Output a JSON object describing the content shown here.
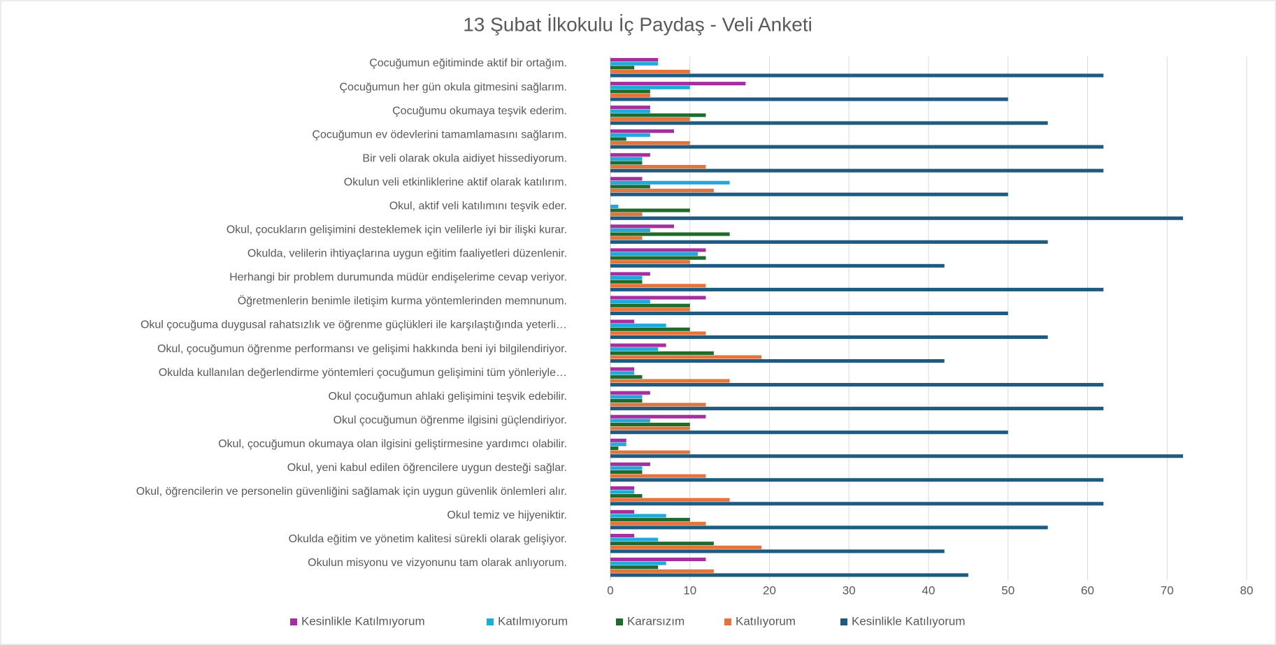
{
  "chart_data": {
    "type": "bar",
    "orientation": "horizontal",
    "title": "13 Şubat İlkokulu İç Paydaş  - Veli Anketi",
    "categories": [
      "Çocuğumun eğitiminde aktif bir ortağım.",
      "Çocuğumun her gün okula gitmesini sağlarım.",
      "Çocuğumu okumaya teşvik ederim.",
      "Çocuğumun ev ödevlerini tamamlamasını sağlarım.",
      "Bir veli olarak okula aidiyet hissediyorum.",
      "Okulun veli etkinliklerine aktif olarak katılırım.",
      "Okul, aktif veli katılımını teşvik eder.",
      "Okul, çocukların gelişimini desteklemek için velilerle iyi bir ilişki kurar.",
      "Okulda, velilerin ihtiyaçlarına uygun eğitim faaliyetleri düzenlenir.",
      "Herhangi bir problem durumunda müdür endişelerime cevap veriyor.",
      "Öğretmenlerin benimle iletişim kurma yöntemlerinden memnunum.",
      "Okul çocuğuma duygusal rahatsızlık ve öğrenme güçlükleri ile karşılaştığında yeterli…",
      "Okul, çocuğumun öğrenme performansı ve gelişimi hakkında beni iyi bilgilendiriyor.",
      "Okulda kullanılan değerlendirme yöntemleri çocuğumun gelişimini tüm yönleriyle…",
      "Okul çocuğumun ahlaki gelişimini teşvik edebilir.",
      "Okul çocuğumun öğrenme ilgisini güçlendiriyor.",
      "Okul, çocuğumun okumaya olan ilgisini geliştirmesine yardımcı olabilir.",
      "Okul, yeni kabul edilen öğrencilere uygun desteği sağlar.",
      "Okul, öğrencilerin ve personelin güvenliğini sağlamak için uygun güvenlik önlemleri alır.",
      "Okul temiz ve hijyeniktir.",
      "Okulda eğitim ve yönetim kalitesi sürekli olarak gelişiyor.",
      "Okulun misyonu ve vizyonunu tam olarak anlıyorum."
    ],
    "series": [
      {
        "name": "Kesinlikle Katılmıyorum",
        "color": "#a3309e",
        "values": [
          6,
          17,
          5,
          8,
          5,
          4,
          0,
          8,
          12,
          5,
          12,
          3,
          7,
          3,
          5,
          12,
          2,
          5,
          3,
          3,
          3,
          12
        ]
      },
      {
        "name": "Katılmıyorum",
        "color": "#21a9da",
        "values": [
          6,
          10,
          5,
          5,
          4,
          15,
          1,
          5,
          11,
          4,
          5,
          7,
          6,
          3,
          4,
          5,
          2,
          4,
          3,
          7,
          6,
          7
        ]
      },
      {
        "name": "Kararsızım",
        "color": "#1e6b2c",
        "values": [
          3,
          5,
          12,
          2,
          4,
          5,
          10,
          15,
          12,
          4,
          10,
          10,
          13,
          4,
          4,
          10,
          1,
          4,
          4,
          10,
          13,
          6
        ]
      },
      {
        "name": "Katılıyorum",
        "color": "#e3743c",
        "values": [
          10,
          5,
          10,
          10,
          12,
          13,
          4,
          4,
          10,
          12,
          10,
          12,
          19,
          15,
          12,
          10,
          10,
          12,
          15,
          12,
          19,
          13
        ]
      },
      {
        "name": "Kesinlikle Katılıyorum",
        "color": "#1f5b80",
        "values": [
          62,
          50,
          55,
          62,
          62,
          50,
          72,
          55,
          42,
          62,
          50,
          55,
          42,
          62,
          62,
          50,
          72,
          62,
          62,
          55,
          42,
          45
        ]
      }
    ],
    "xlim": [
      0,
      80
    ],
    "xticks": [
      0,
      10,
      20,
      30,
      40,
      50,
      60,
      70,
      80
    ],
    "grid": true,
    "legend": "bottom"
  }
}
